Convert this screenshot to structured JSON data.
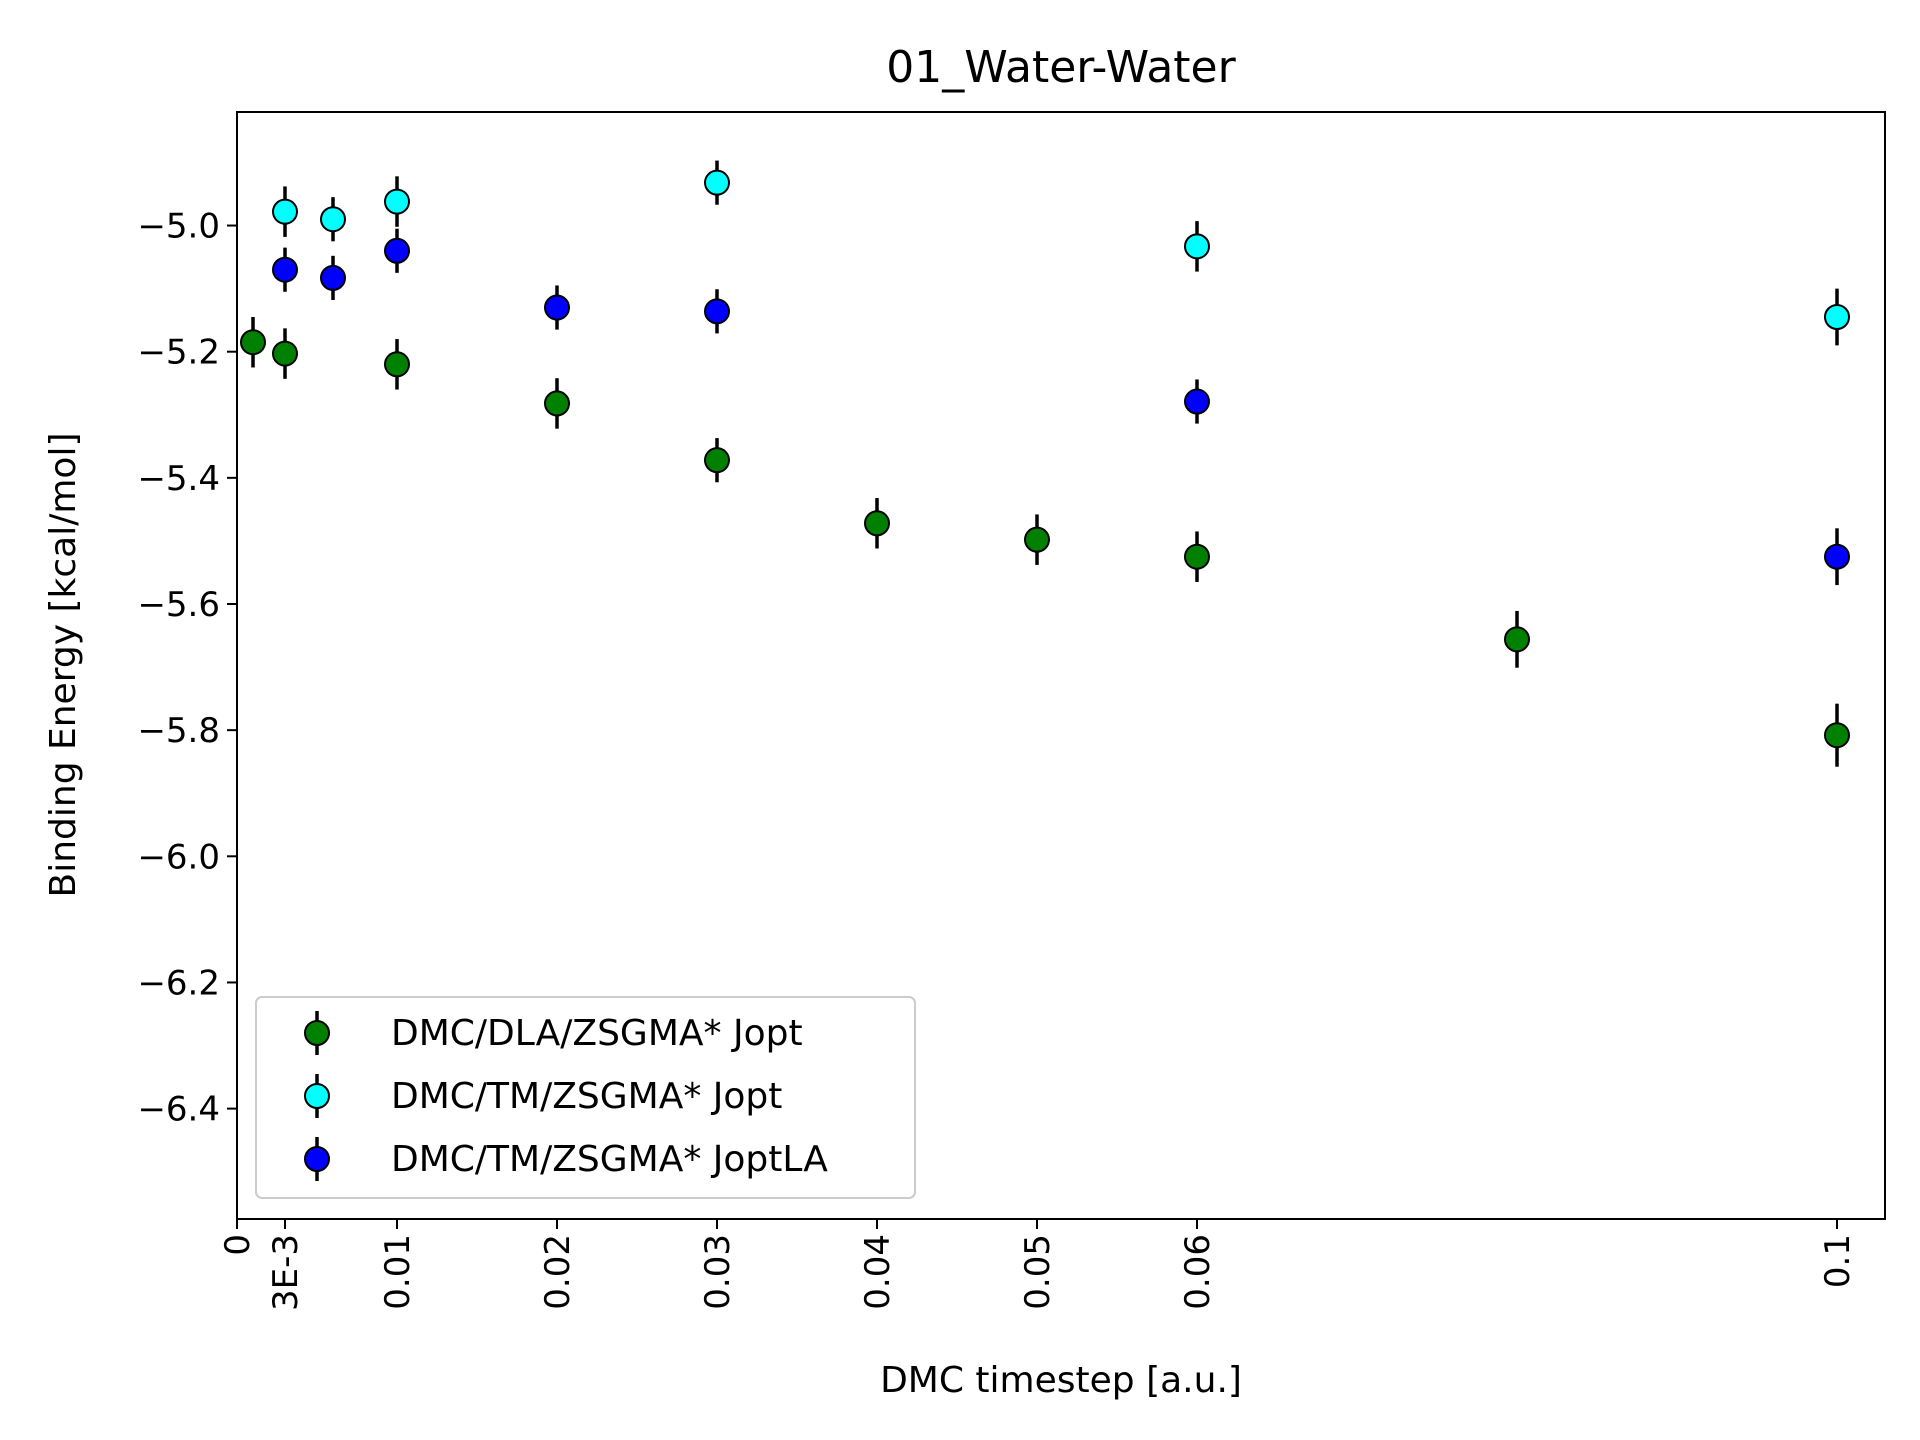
{
  "chart_data": {
    "type": "scatter",
    "title": "01_Water-Water",
    "xlabel": "DMC timestep [a.u.]",
    "ylabel": "Binding Energy [kcal/mol]",
    "xlim": [
      0,
      0.103
    ],
    "ylim": [
      -6.575,
      -4.82
    ],
    "x_ticks": [
      {
        "value": 0,
        "label": "0"
      },
      {
        "value": 0.003,
        "label": "3E-3"
      },
      {
        "value": 0.01,
        "label": "0.01"
      },
      {
        "value": 0.02,
        "label": "0.02"
      },
      {
        "value": 0.03,
        "label": "0.03"
      },
      {
        "value": 0.04,
        "label": "0.04"
      },
      {
        "value": 0.05,
        "label": "0.05"
      },
      {
        "value": 0.06,
        "label": "0.06"
      },
      {
        "value": 0.1,
        "label": "0.1"
      }
    ],
    "y_ticks": [
      {
        "value": -5.0,
        "label": "−5.0"
      },
      {
        "value": -5.2,
        "label": "−5.2"
      },
      {
        "value": -5.4,
        "label": "−5.4"
      },
      {
        "value": -5.6,
        "label": "−5.6"
      },
      {
        "value": -5.8,
        "label": "−5.8"
      },
      {
        "value": -6.0,
        "label": "−6.0"
      },
      {
        "value": -6.2,
        "label": "−6.2"
      },
      {
        "value": -6.4,
        "label": "−6.4"
      }
    ],
    "grid": false,
    "legend_position": "lower-left",
    "series": [
      {
        "name": "DMC/DLA/ZSGMA* Jopt",
        "color": "#008000",
        "points": [
          {
            "x": 0.001,
            "y": -5.185,
            "err": 0.04
          },
          {
            "x": 0.003,
            "y": -5.203,
            "err": 0.04
          },
          {
            "x": 0.01,
            "y": -5.22,
            "err": 0.04
          },
          {
            "x": 0.02,
            "y": -5.282,
            "err": 0.04
          },
          {
            "x": 0.03,
            "y": -5.372,
            "err": 0.035
          },
          {
            "x": 0.04,
            "y": -5.472,
            "err": 0.04
          },
          {
            "x": 0.05,
            "y": -5.498,
            "err": 0.04
          },
          {
            "x": 0.06,
            "y": -5.525,
            "err": 0.04
          },
          {
            "x": 0.08,
            "y": -5.656,
            "err": 0.045
          },
          {
            "x": 0.1,
            "y": -5.808,
            "err": 0.05
          }
        ]
      },
      {
        "name": "DMC/TM/ZSGMA* Jopt",
        "color": "#00ffff",
        "points": [
          {
            "x": 0.003,
            "y": -4.978,
            "err": 0.04
          },
          {
            "x": 0.006,
            "y": -4.99,
            "err": 0.035
          },
          {
            "x": 0.01,
            "y": -4.962,
            "err": 0.04
          },
          {
            "x": 0.03,
            "y": -4.932,
            "err": 0.035
          },
          {
            "x": 0.06,
            "y": -5.033,
            "err": 0.04
          },
          {
            "x": 0.1,
            "y": -5.145,
            "err": 0.045
          }
        ]
      },
      {
        "name": "DMC/TM/ZSGMA* JoptLA",
        "color": "#0000ff",
        "points": [
          {
            "x": 0.003,
            "y": -5.07,
            "err": 0.035
          },
          {
            "x": 0.006,
            "y": -5.083,
            "err": 0.035
          },
          {
            "x": 0.01,
            "y": -5.04,
            "err": 0.035
          },
          {
            "x": 0.02,
            "y": -5.13,
            "err": 0.035
          },
          {
            "x": 0.03,
            "y": -5.136,
            "err": 0.035
          },
          {
            "x": 0.06,
            "y": -5.279,
            "err": 0.035
          },
          {
            "x": 0.1,
            "y": -5.525,
            "err": 0.045
          }
        ]
      }
    ]
  }
}
